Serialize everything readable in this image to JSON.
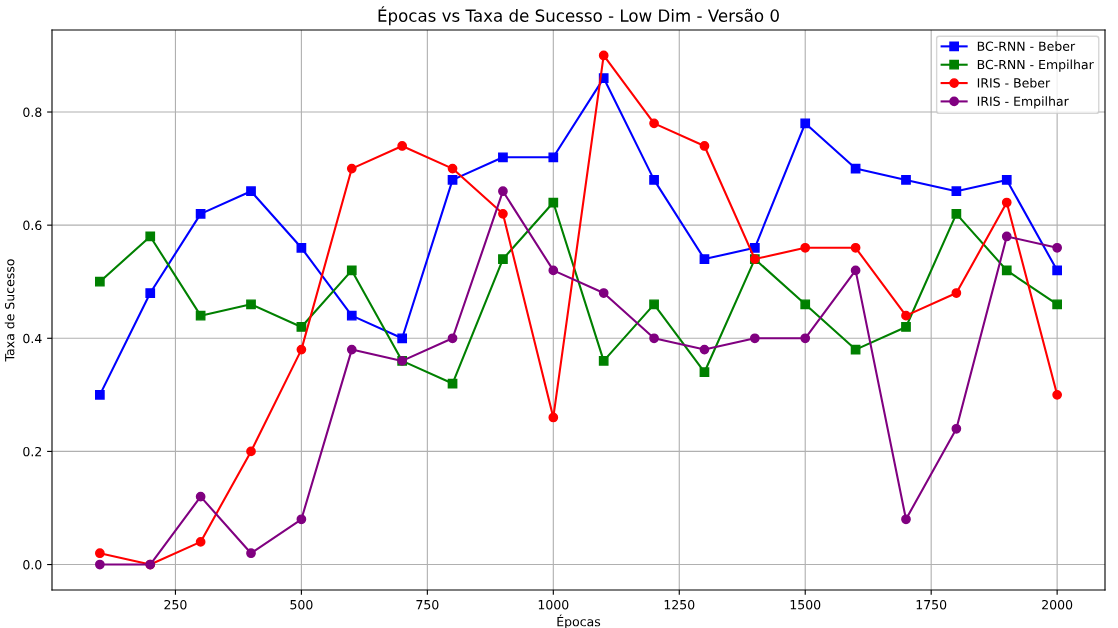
{
  "chart_data": {
    "type": "line",
    "title": "Épocas vs Taxa de Sucesso - Low Dim - Versão 0",
    "xlabel": "Épocas",
    "ylabel": "Taxa de Sucesso",
    "x": [
      100,
      200,
      300,
      400,
      500,
      600,
      700,
      800,
      900,
      1000,
      1100,
      1200,
      1300,
      1400,
      1500,
      1600,
      1700,
      1800,
      1900,
      2000
    ],
    "series": [
      {
        "name": "BC-RNN - Beber",
        "color": "#0000ff",
        "marker": "square",
        "values": [
          0.3,
          0.48,
          0.62,
          0.66,
          0.56,
          0.44,
          0.4,
          0.68,
          0.72,
          0.72,
          0.86,
          0.68,
          0.54,
          0.56,
          0.78,
          0.7,
          0.68,
          0.66,
          0.68,
          0.52
        ]
      },
      {
        "name": "BC-RNN - Empilhar",
        "color": "#008000",
        "marker": "square",
        "values": [
          0.5,
          0.58,
          0.44,
          0.46,
          0.42,
          0.52,
          0.36,
          0.32,
          0.54,
          0.64,
          0.36,
          0.46,
          0.34,
          0.54,
          0.46,
          0.38,
          0.42,
          0.62,
          0.52,
          0.46
        ]
      },
      {
        "name": "IRIS - Beber",
        "color": "#ff0000",
        "marker": "circle",
        "values": [
          0.02,
          0.0,
          0.04,
          0.2,
          0.38,
          0.7,
          0.74,
          0.7,
          0.62,
          0.26,
          0.9,
          0.78,
          0.74,
          0.54,
          0.56,
          0.56,
          0.44,
          0.48,
          0.64,
          0.3
        ]
      },
      {
        "name": "IRIS - Empilhar",
        "color": "#800080",
        "marker": "circle",
        "values": [
          0.0,
          0.0,
          0.12,
          0.02,
          0.08,
          0.38,
          0.36,
          0.4,
          0.66,
          0.52,
          0.48,
          0.4,
          0.38,
          0.4,
          0.4,
          0.52,
          0.08,
          0.24,
          0.58,
          0.56
        ]
      }
    ],
    "xlim": [
      5,
      2095
    ],
    "xticks": [
      250,
      500,
      750,
      1000,
      1250,
      1500,
      1750,
      2000
    ],
    "ylim": [
      -0.045,
      0.945
    ],
    "yticks": [
      {
        "value": 0,
        "label": "0.0"
      },
      0.2,
      0.4,
      0.6,
      0.8
    ],
    "grid": true,
    "legend": "top right",
    "line_style": "solid"
  }
}
